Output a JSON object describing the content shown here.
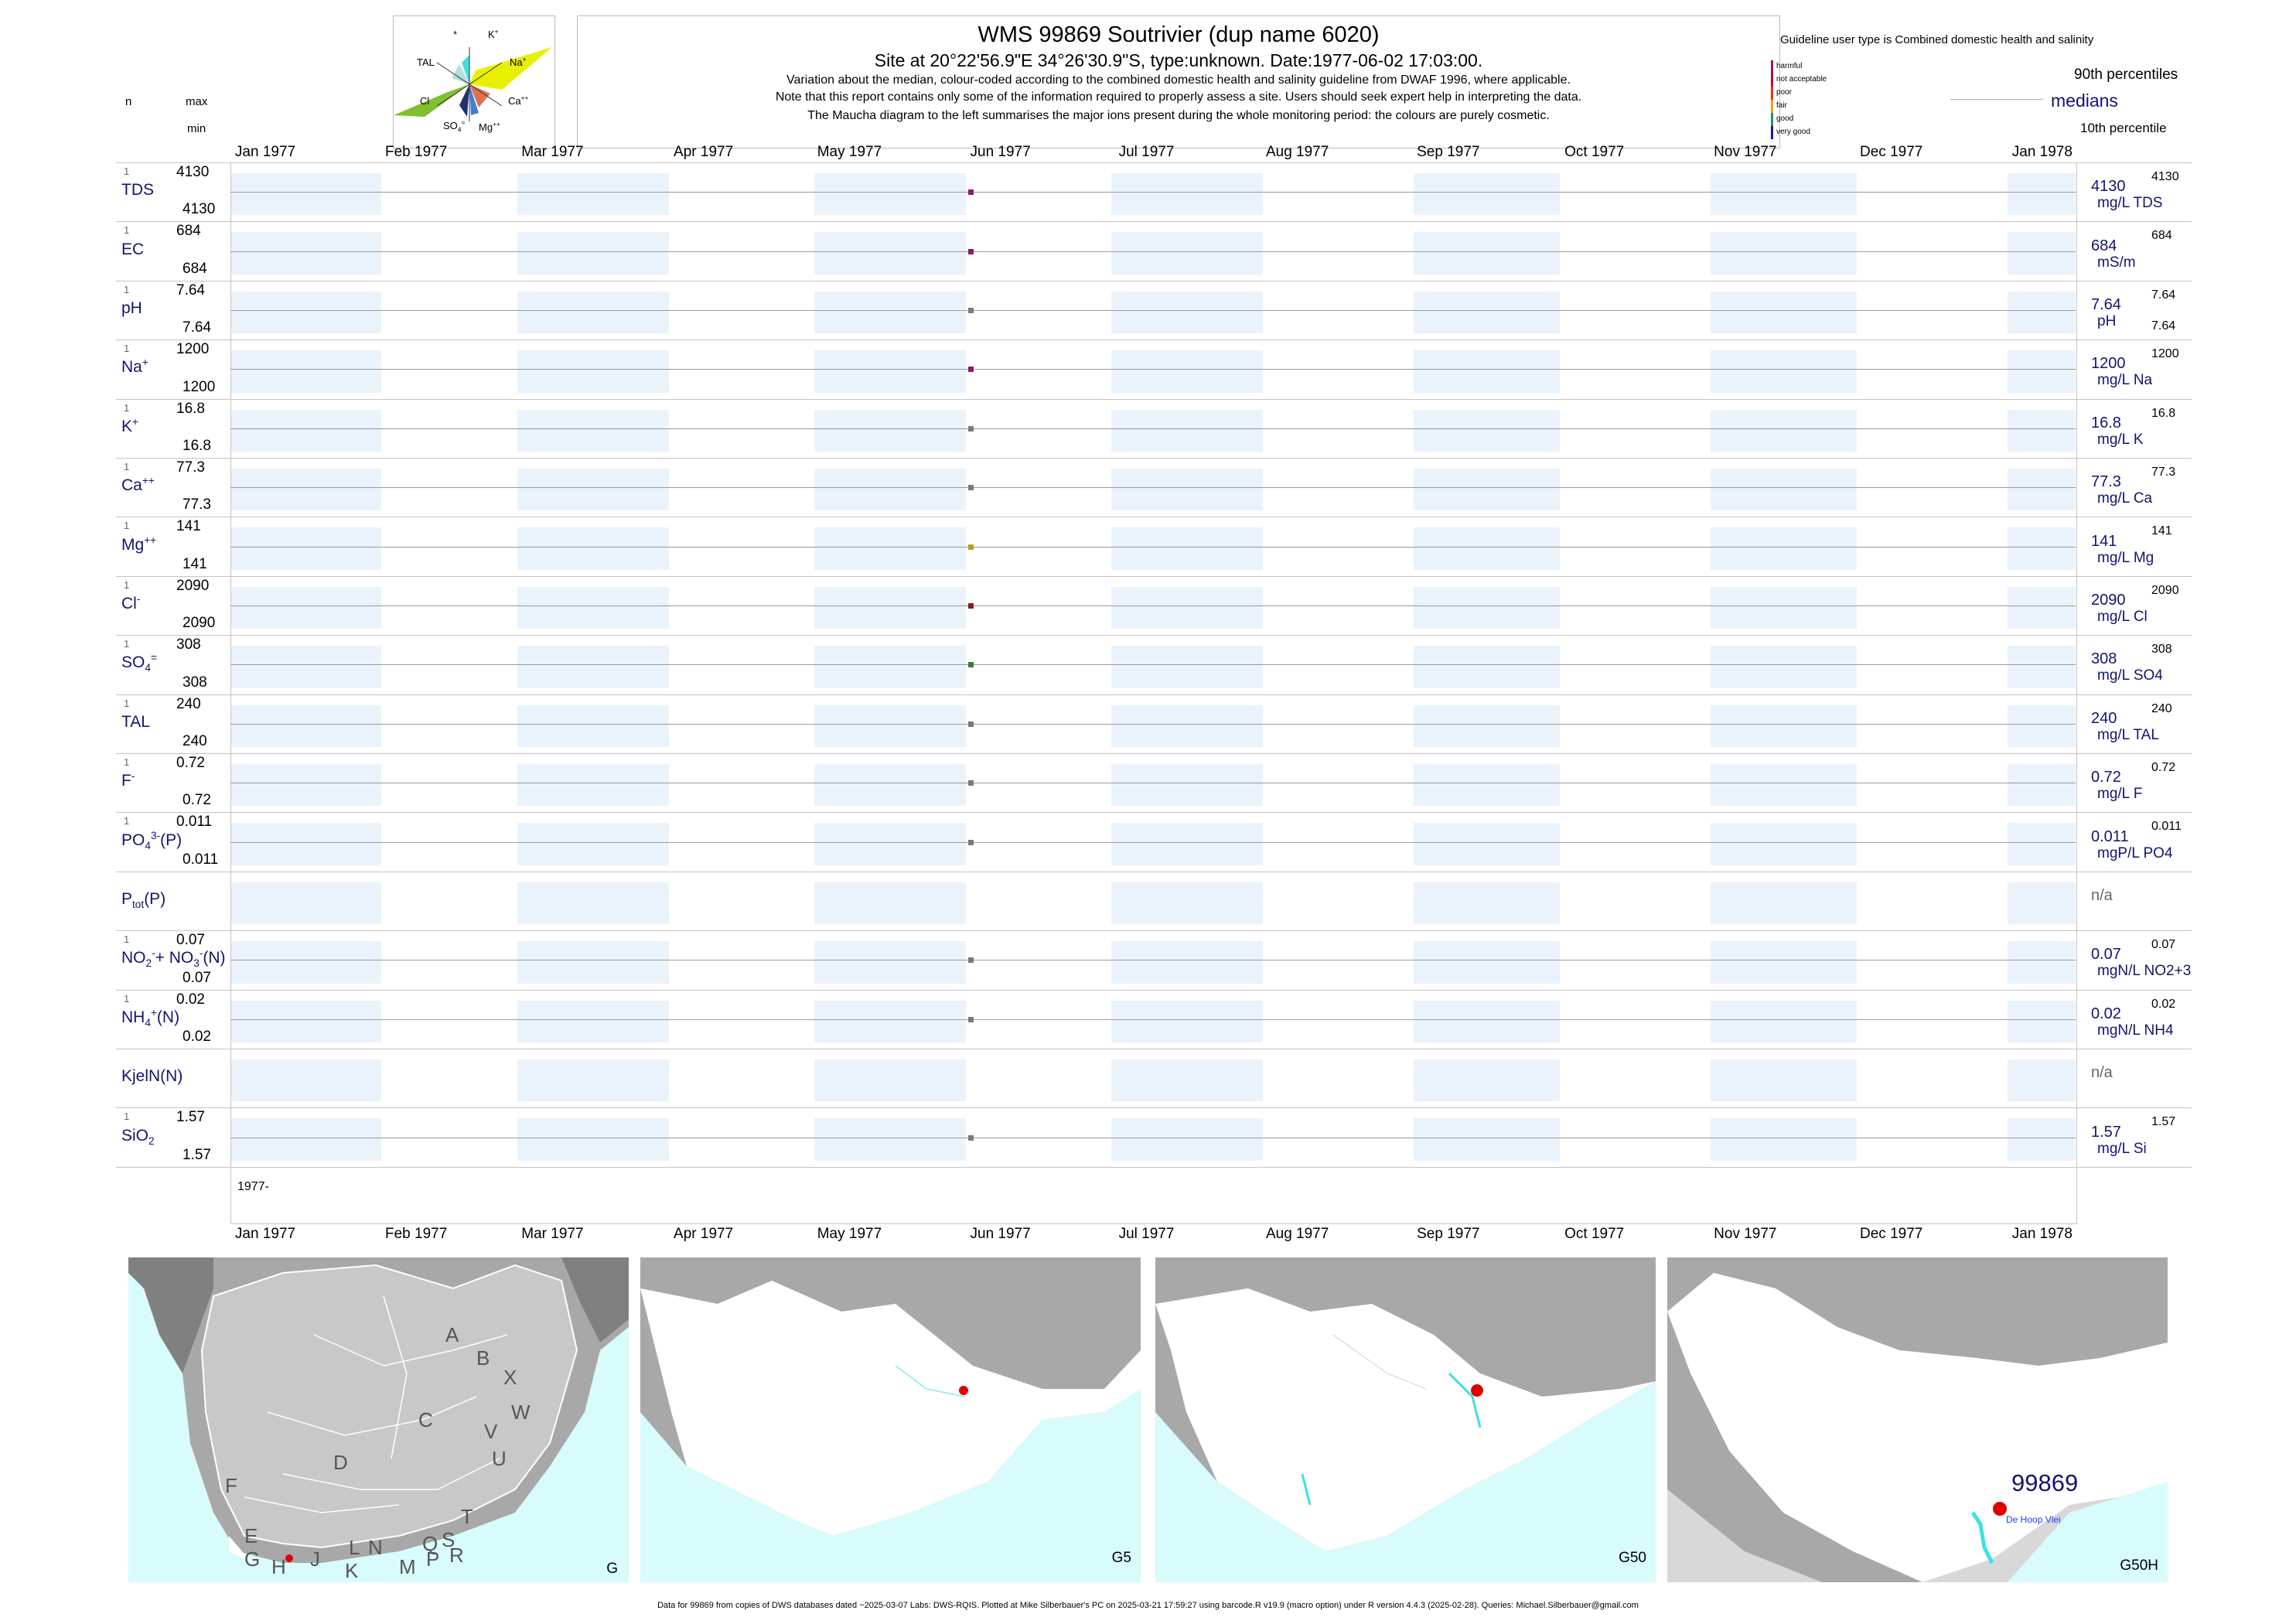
{
  "header": {
    "title": "WMS 99869  Soutrivier (dup name 6020)",
    "site": "Site at 20°22'56.9\"E 34°26'30.9\"S, type:unknown. Date:1977-06-02 17:03:00.",
    "note1": "Variation about the median,  colour-coded according to the combined domestic health and salinity guideline from DWAF 1996, where applicable.",
    "note2": "Note that this report contains only some of the information required to properly assess a site. Users should seek expert help in interpreting the data.",
    "note3": "The Maucha diagram to the left summarises the major ions present during the whole monitoring period: the colours are purely cosmetic."
  },
  "left_legend": {
    "n": "n",
    "max": "max",
    "min": "min"
  },
  "maucha": {
    "labels": [
      "*",
      "K+",
      "TAL",
      "Na+",
      "Cl",
      "Ca++",
      "SO4=",
      "Mg++"
    ]
  },
  "guideline": {
    "title": "Guideline user type is Combined domestic health and salinity",
    "levels": [
      {
        "label": "harmful",
        "color": "#8b1a6b"
      },
      {
        "label": "not acceptable",
        "color": "#c0003c"
      },
      {
        "label": "poor",
        "color": "#e0301e"
      },
      {
        "label": "fair",
        "color": "#f0a020"
      },
      {
        "label": "good",
        "color": "#2e8b57"
      },
      {
        "label": "very good",
        "color": "#1a1a8c"
      }
    ],
    "p90": "90th percentiles",
    "medians": "medians",
    "p10": "10th percentile"
  },
  "months": [
    "Jan 1977",
    "Feb 1977",
    "Mar 1977",
    "Apr 1977",
    "May 1977",
    "Jun 1977",
    "Jul 1977",
    "Aug 1977",
    "Sep 1977",
    "Oct 1977",
    "Nov 1977",
    "Dec 1977",
    "Jan 1978"
  ],
  "chart_data": {
    "type": "scatter",
    "x_axis": {
      "type": "date",
      "range": [
        "1977-01-01",
        "1978-01-15"
      ]
    },
    "sample_date": "1977-06-02",
    "series": [
      {
        "name": "TDS",
        "n": "1",
        "max": "4130",
        "min": "4130",
        "median": "4130",
        "unit": "mg/L TDS",
        "p90": "4130",
        "p10": "",
        "value": 4130,
        "color": "#8b1a6b"
      },
      {
        "name": "EC",
        "n": "1",
        "max": "684",
        "min": "684",
        "median": "684",
        "unit": "mS/m",
        "p90": "684",
        "p10": "",
        "value": 684,
        "color": "#8b1a6b"
      },
      {
        "name": "pH",
        "n": "1",
        "max": "7.64",
        "min": "7.64",
        "median": "7.64",
        "unit": "pH",
        "p90": "7.64",
        "p10": "7.64",
        "value": 7.64,
        "color": "#7a7a7a"
      },
      {
        "name": "Na",
        "n": "1",
        "max": "1200",
        "min": "1200",
        "median": "1200",
        "unit": "mg/L Na",
        "p90": "1200",
        "p10": "",
        "value": 1200,
        "color": "#8b1a6b"
      },
      {
        "name": "K",
        "n": "1",
        "max": "16.8",
        "min": "16.8",
        "median": "16.8",
        "unit": "mg/L K",
        "p90": "16.8",
        "p10": "",
        "value": 16.8,
        "color": "#7a7a7a"
      },
      {
        "name": "Ca",
        "n": "1",
        "max": "77.3",
        "min": "77.3",
        "median": "77.3",
        "unit": "mg/L Ca",
        "p90": "77.3",
        "p10": "",
        "value": 77.3,
        "color": "#7a7a7a"
      },
      {
        "name": "Mg",
        "n": "1",
        "max": "141",
        "min": "141",
        "median": "141",
        "unit": "mg/L Mg",
        "p90": "141",
        "p10": "",
        "value": 141,
        "color": "#b8a020"
      },
      {
        "name": "Cl",
        "n": "1",
        "max": "2090",
        "min": "2090",
        "median": "2090",
        "unit": "mg/L Cl",
        "p90": "2090",
        "p10": "",
        "value": 2090,
        "color": "#8b1a2b"
      },
      {
        "name": "SO4",
        "n": "1",
        "max": "308",
        "min": "308",
        "median": "308",
        "unit": "mg/L SO4",
        "p90": "308",
        "p10": "",
        "value": 308,
        "color": "#3a7a3a"
      },
      {
        "name": "TAL",
        "n": "1",
        "max": "240",
        "min": "240",
        "median": "240",
        "unit": "mg/L TAL",
        "p90": "240",
        "p10": "",
        "value": 240,
        "color": "#7a7a7a"
      },
      {
        "name": "F",
        "n": "1",
        "max": "0.72",
        "min": "0.72",
        "median": "0.72",
        "unit": "mg/L F",
        "p90": "0.72",
        "p10": "",
        "value": 0.72,
        "color": "#7a7a7a"
      },
      {
        "name": "PO4",
        "n": "1",
        "max": "0.011",
        "min": "0.011",
        "median": "0.011",
        "unit": "mgP/L PO4",
        "p90": "0.011",
        "p10": "",
        "value": 0.011,
        "color": "#7a7a7a"
      },
      {
        "name": "Ptot",
        "n": "",
        "max": "",
        "min": "",
        "median": "n/a",
        "unit": "",
        "p90": "",
        "p10": "",
        "value": null,
        "color": "#7a7a7a"
      },
      {
        "name": "NO2+NO3",
        "n": "1",
        "max": "0.07",
        "min": "0.07",
        "median": "0.07",
        "unit": "mgN/L NO2+3",
        "p90": "0.07",
        "p10": "",
        "value": 0.07,
        "color": "#7a7a7a"
      },
      {
        "name": "NH4",
        "n": "1",
        "max": "0.02",
        "min": "0.02",
        "median": "0.02",
        "unit": "mgN/L NH4",
        "p90": "0.02",
        "p10": "",
        "value": 0.02,
        "color": "#7a7a7a"
      },
      {
        "name": "KjelN",
        "n": "",
        "max": "",
        "min": "",
        "median": "n/a",
        "unit": "",
        "p90": "",
        "p10": "",
        "value": null,
        "color": "#7a7a7a"
      },
      {
        "name": "SiO2",
        "n": "1",
        "max": "1.57",
        "min": "1.57",
        "median": "1.57",
        "unit": "mg/L Si",
        "p90": "1.57",
        "p10": "",
        "value": 1.57,
        "color": "#7a7a7a"
      }
    ]
  },
  "bottom_panel": {
    "year_label": "1977-"
  },
  "maps": {
    "m1": {
      "label": "G",
      "regions": [
        "A",
        "B",
        "X",
        "W",
        "C",
        "V",
        "D",
        "U",
        "F",
        "T",
        "E",
        "S",
        "Q",
        "R",
        "L",
        "N",
        "P",
        "J",
        "M",
        "K",
        "G",
        "H"
      ]
    },
    "m2": {
      "label": "G5"
    },
    "m3": {
      "label": "G50"
    },
    "m4": {
      "label": "G50H",
      "site_id": "99869",
      "place": "De Hoop Vlei"
    }
  },
  "footer": "Data for 99869 from copies of DWS databases dated ~2025-03-07 Labs: DWS-RQIS. Plotted at Mike Silberbauer's PC on 2025-03-21 17:59:27 using barcode.R v19.9 (macro option) under R version 4.4.3 (2025-02-28). Queries: Michael.Silberbauer@gmail.com"
}
